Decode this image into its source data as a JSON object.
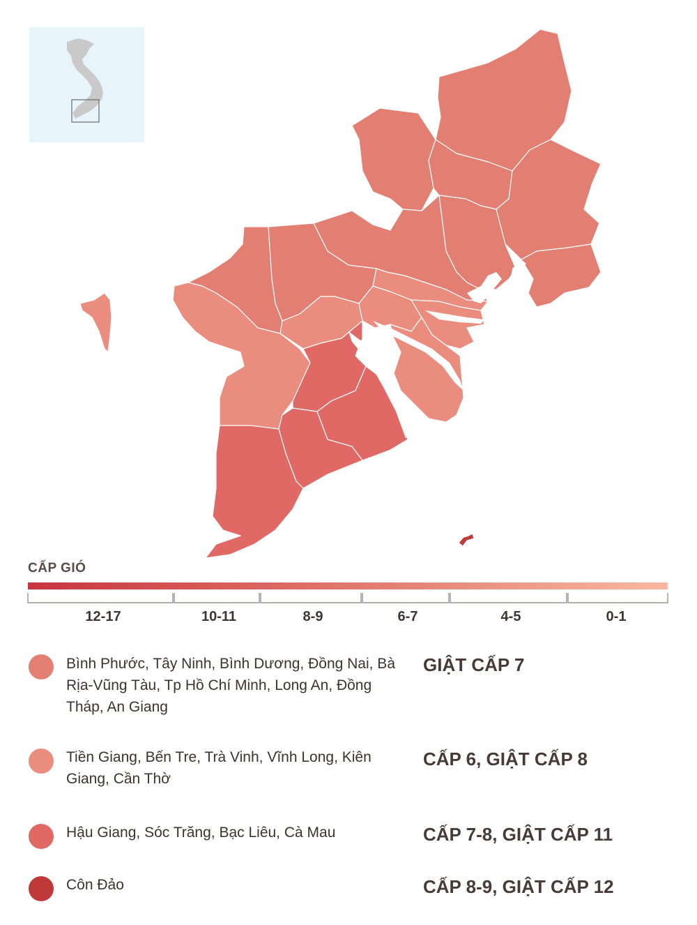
{
  "colors": {
    "inset_bg": "#e7f4fb",
    "inset_country": "#c9c9c9",
    "region_gust7": "#e37f72",
    "region_level6": "#ea8d7e",
    "region_level7_8": "#e06865",
    "con_dao": "#c0393a",
    "scale_start": "#c9343e",
    "scale_end": "#f9b8a2"
  },
  "scale": {
    "title": "CẤP GIÓ",
    "labels": [
      "12-17",
      "10-11",
      "8-9",
      "6-7",
      "4-5",
      "0-1"
    ]
  },
  "legend": [
    {
      "color": "#e37f72",
      "regions": "Bình Phước, Tây Ninh, Bình Dương, Đồng Nai, Bà Rịa-Vũng Tàu, Tp Hồ Chí Minh, Long An, Đồng Tháp, An Giang",
      "level": "GIẬT CẤP 7"
    },
    {
      "color": "#ea8d7e",
      "regions": "Tiền Giang, Bến Tre, Trà Vinh, Vĩnh Long, Kiên Giang, Cần Thờ",
      "level": "CẤP 6, GIẬT CẤP 8"
    },
    {
      "color": "#e06865",
      "regions": "Hậu Giang, Sóc Trăng, Bạc Liêu, Cà Mau",
      "level": "CẤP 7-8, GIẬT CẤP 11"
    },
    {
      "color": "#c0393a",
      "regions": "Côn Đảo",
      "level": "CẤP 8-9, GIẬT CẤP 12"
    }
  ]
}
